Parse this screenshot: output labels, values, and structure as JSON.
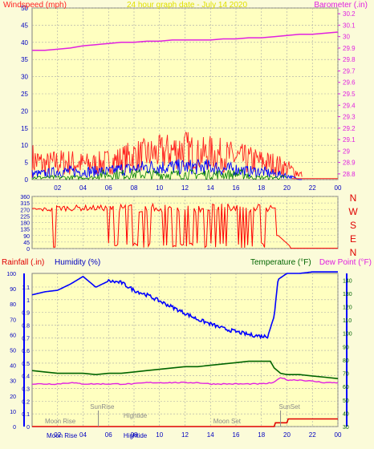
{
  "colors": {
    "background": "#fbfbd9",
    "plot": "#ffffc0",
    "grid": "#a8a8a8",
    "windspeed": "#ff2020",
    "gust": "#0000ff",
    "windgreen": "#008000",
    "barometer": "#e020e0",
    "direction": "#ff0000",
    "rainfall": "#e00000",
    "humidity": "#0000ff",
    "temperature": "#006400",
    "dewpoint": "#e020e0",
    "astro": "#8a8a8a"
  },
  "header": {
    "left_label": "Windspeed (mph)",
    "center_label": "24 hour graph date - July 14 2020",
    "right_label": "Barometer (.in)"
  },
  "direction_labels": [
    "N",
    "W",
    "S",
    "E",
    "N"
  ],
  "bottom_header": {
    "rainfall": "Rainfall (.in)",
    "humidity": "Humidity (%)",
    "temperature": "Temperature (°F)",
    "dewpoint": "Dew Point (°F)"
  },
  "annotations": {
    "sunrise": "SunRise",
    "hightide": "Hightide",
    "moonrise_top": "Moon Rise",
    "moonset": "Moon Set",
    "sunset": "SunSet",
    "moonrise_bottom": "Moon Rise",
    "hightide_bottom": "Hightide"
  },
  "chart_data": [
    {
      "type": "line",
      "x_ticks": [
        "02",
        "04",
        "06",
        "08",
        "10",
        "12",
        "14",
        "16",
        "18",
        "20",
        "22",
        "00"
      ],
      "xlim": [
        0,
        24
      ],
      "y_ticks_left": [
        "0",
        "5",
        "10",
        "15",
        "20",
        "25",
        "30",
        "35",
        "40",
        "45",
        "50"
      ],
      "y_ticks_right": [
        "28.8",
        "28.9",
        "29",
        "29.1",
        "29.2",
        "29.3",
        "29.4",
        "29.5",
        "29.6",
        "29.7",
        "29.8",
        "29.9",
        "30",
        "30.1",
        "30.2"
      ],
      "ylim_left": [
        0,
        50
      ],
      "ylim_right": [
        28.75,
        30.25
      ],
      "series": [
        {
          "name": "Barometer",
          "axis": "right",
          "x": [
            0,
            1,
            2,
            3,
            4,
            5,
            6,
            7,
            8,
            9,
            10,
            11,
            12,
            13,
            14,
            15,
            16,
            17,
            18,
            19,
            20,
            21,
            22,
            23,
            24
          ],
          "values": [
            29.88,
            29.88,
            29.89,
            29.9,
            29.92,
            29.93,
            29.94,
            29.95,
            29.95,
            29.96,
            29.96,
            29.97,
            29.97,
            29.97,
            29.97,
            29.98,
            29.98,
            29.99,
            29.99,
            30.0,
            30.01,
            30.02,
            30.02,
            30.03,
            30.04
          ]
        },
        {
          "name": "Windspeed",
          "axis": "left",
          "x": [
            0,
            1,
            2,
            3,
            4,
            5,
            6,
            7,
            8,
            9,
            10,
            11,
            12,
            13,
            14,
            15,
            16,
            17,
            18,
            19,
            20,
            21,
            22,
            23,
            24
          ],
          "values": [
            2,
            2,
            3,
            3,
            3,
            3,
            4,
            5,
            6,
            7,
            7,
            8,
            8,
            7,
            7,
            6,
            5,
            4,
            4,
            3,
            2,
            1,
            0,
            0,
            0
          ],
          "peak": [
            11,
            8,
            9,
            9,
            8,
            8,
            9,
            10,
            12,
            12,
            13,
            14,
            15,
            12,
            13,
            12,
            11,
            10,
            9,
            8,
            6,
            3,
            0,
            0,
            0
          ]
        },
        {
          "name": "Gust",
          "axis": "left",
          "x": [
            0,
            1,
            2,
            3,
            4,
            5,
            6,
            7,
            8,
            9,
            10,
            11,
            12,
            13,
            14,
            15,
            16,
            17,
            18,
            19,
            20,
            21,
            22,
            23,
            24
          ],
          "values": [
            1,
            1,
            2,
            2,
            2,
            2,
            2,
            3,
            3,
            4,
            4,
            4,
            4,
            4,
            4,
            3,
            3,
            2,
            2,
            1,
            1,
            0,
            0,
            0,
            0
          ],
          "peak": [
            3,
            3,
            4,
            4,
            4,
            4,
            4,
            5,
            5,
            6,
            6,
            6,
            6,
            6,
            6,
            5,
            5,
            4,
            4,
            3,
            2,
            0,
            0,
            0,
            0
          ]
        }
      ]
    },
    {
      "type": "scatter",
      "name": "Wind Direction",
      "y_ticks": [
        "360",
        "315",
        "270",
        "225",
        "180",
        "135",
        "90",
        "45",
        "0"
      ],
      "ylim": [
        0,
        360
      ],
      "x_ticks": [],
      "segments": [
        [
          0,
          265
        ],
        [
          1.2,
          275
        ],
        [
          1.6,
          20
        ],
        [
          1.9,
          290
        ],
        [
          3.6,
          280
        ],
        [
          4.4,
          265
        ],
        [
          5.5,
          295
        ],
        [
          6.1,
          20
        ],
        [
          6.6,
          290
        ],
        [
          7.6,
          15
        ],
        [
          8.0,
          300
        ],
        [
          8.6,
          10
        ],
        [
          9.2,
          285
        ],
        [
          10.0,
          20
        ],
        [
          11.0,
          285
        ],
        [
          12.0,
          10
        ],
        [
          13.0,
          290
        ],
        [
          14.0,
          15
        ],
        [
          15.0,
          285
        ],
        [
          16.0,
          30
        ],
        [
          17.0,
          280
        ],
        [
          18.3,
          45
        ],
        [
          19.0,
          290
        ],
        [
          19.3,
          90
        ],
        [
          20.2,
          0
        ],
        [
          24,
          0
        ]
      ]
    },
    {
      "type": "line",
      "x_ticks": [
        "02",
        "04",
        "06",
        "08",
        "10",
        "12",
        "14",
        "16",
        "18",
        "20",
        "22",
        "00"
      ],
      "xlim": [
        0,
        24
      ],
      "y_ticks_left_humidity": [
        "0",
        "10",
        "20",
        "30",
        "40",
        "50",
        "60",
        "70",
        "80",
        "90",
        "100"
      ],
      "y_ticks_left_rain": [
        "0",
        "0.1",
        "0.2",
        "0.3",
        "0.4",
        "0.5",
        "0.6",
        "0.7",
        "0.8",
        "0.9",
        "1",
        "1.1"
      ],
      "y_ticks_right": [
        "30",
        "40",
        "50",
        "60",
        "70",
        "80",
        "90",
        "100",
        "110",
        "120",
        "130",
        "140"
      ],
      "ylim_humidity": [
        0,
        100
      ],
      "ylim_right": [
        30,
        145
      ],
      "series": [
        {
          "name": "Humidity",
          "axis": "humidity",
          "x": [
            0,
            1,
            2,
            3,
            4,
            5,
            6,
            7,
            8,
            9,
            10,
            11,
            12,
            13,
            14,
            15,
            16,
            17,
            18,
            18.5,
            19,
            19.3,
            20,
            21,
            22,
            23,
            24
          ],
          "values": [
            86,
            88,
            89,
            93,
            98,
            91,
            95,
            94,
            89,
            86,
            82,
            78,
            74,
            70,
            67,
            64,
            62,
            60,
            59,
            59,
            72,
            96,
            100,
            100,
            101,
            101,
            101
          ]
        },
        {
          "name": "Temperature",
          "axis": "right",
          "x": [
            0,
            1,
            2,
            3,
            4,
            5,
            6,
            7,
            8,
            9,
            10,
            11,
            12,
            13,
            14,
            15,
            16,
            17,
            18,
            18.7,
            19,
            19.5,
            20,
            21,
            22,
            23,
            24
          ],
          "values": [
            72,
            71,
            70,
            70,
            70,
            69,
            70,
            70,
            71,
            72,
            73,
            74,
            75,
            75,
            76,
            77,
            78,
            79,
            79,
            79,
            74,
            70,
            69,
            69,
            68,
            67,
            66
          ]
        },
        {
          "name": "Dew Point",
          "axis": "right",
          "x": [
            0,
            1,
            2,
            3,
            4,
            5,
            6,
            7,
            8,
            9,
            10,
            11,
            12,
            13,
            14,
            15,
            16,
            17,
            18,
            19,
            19.5,
            20,
            21,
            22,
            23,
            24
          ],
          "values": [
            62,
            62,
            62,
            63,
            62,
            62,
            62,
            62,
            62,
            63,
            63,
            63,
            63,
            63,
            62,
            62,
            62,
            62,
            62,
            63,
            67,
            65,
            65,
            64,
            63,
            63
          ]
        },
        {
          "name": "Rainfall",
          "axis": "rain",
          "x": [
            0,
            19,
            19.1,
            20,
            20.1,
            24
          ],
          "values": [
            0,
            0,
            0.03,
            0.03,
            0.06,
            0.06
          ]
        }
      ]
    }
  ]
}
